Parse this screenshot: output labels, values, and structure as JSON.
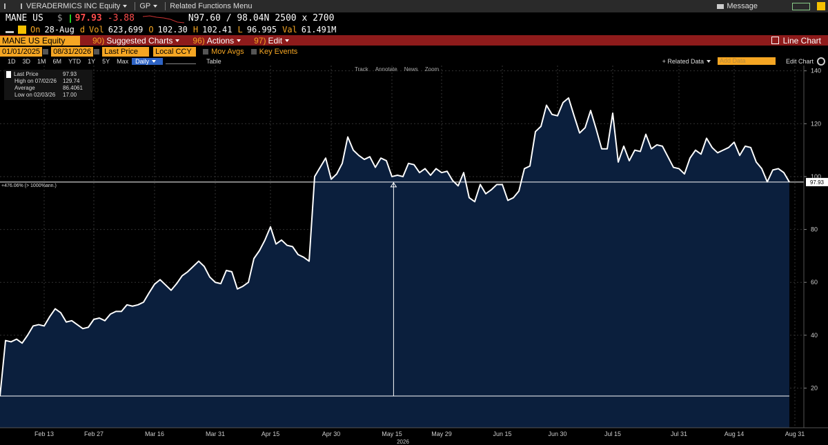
{
  "header": {
    "security": "VERADERMICS INC Equity",
    "function": "GP",
    "related": "Related Functions Menu",
    "message": "Message"
  },
  "quote": {
    "ticker": "MANE US",
    "currency": "$",
    "last": "97.93",
    "change": "-3.88",
    "bid_ask": "N97.60 / 98.04N",
    "size": "2500 x 2700"
  },
  "stats": [
    {
      "label": "On",
      "value": "28-Aug"
    },
    {
      "label": "d",
      "value": ""
    },
    {
      "label": "Vol",
      "value": "623,699"
    },
    {
      "label": "O",
      "value": "102.30"
    },
    {
      "label": "H",
      "value": "102.41"
    },
    {
      "label": "L",
      "value": "96.995"
    },
    {
      "label": "Val",
      "value": "61.491M"
    }
  ],
  "menu": {
    "security": "MANE US Equity",
    "items": [
      {
        "key": "90)",
        "label": "Suggested Charts"
      },
      {
        "key": "96)",
        "label": "Actions"
      },
      {
        "key": "97)",
        "label": "Edit"
      }
    ],
    "chart_name": "Line Chart"
  },
  "settings": {
    "start": "01/01/2025",
    "end": "08/31/2026",
    "field": "Last Price",
    "currency": "Local CCY",
    "options": [
      "Mov Avgs",
      "Key Events"
    ]
  },
  "periods": {
    "items": [
      "1D",
      "3D",
      "1M",
      "6M",
      "YTD",
      "1Y",
      "5Y",
      "Max"
    ],
    "frequency": "Daily",
    "table": "Table",
    "related_data": "+ Related Data",
    "add_data": "Add Data",
    "edit_chart": "Edit Chart"
  },
  "tools": [
    "Track",
    "Annotate",
    "News",
    "Zoom"
  ],
  "chart_data": {
    "type": "line",
    "legend_position": "top-left",
    "legend": [
      {
        "label": "Last Price",
        "value": "97.93"
      },
      {
        "label": "High on 07/02/26",
        "value": "129.74"
      },
      {
        "label": "Average",
        "value": "86.4061"
      },
      {
        "label": "Low on 02/03/26",
        "value": "17.00"
      }
    ],
    "return_label": "+476.06% (> 1000%ann.)",
    "year_label": "2026",
    "series": [
      {
        "name": "Last Price",
        "color": "#ffffff",
        "fill": "#0b1f3d",
        "values": [
          17,
          38,
          37.5,
          38.5,
          37,
          40,
          43.5,
          44,
          43.5,
          47,
          50,
          48.5,
          45,
          45.5,
          44,
          42.5,
          43,
          46,
          46.5,
          45.5,
          48,
          49,
          49,
          51.5,
          51,
          51.5,
          52.5,
          56,
          59.3,
          61,
          59,
          57,
          59.5,
          62.5,
          64,
          66,
          68,
          66,
          62,
          60,
          59.5,
          64.5,
          64,
          57.5,
          58.5,
          60,
          69,
          72,
          76,
          81,
          74.5,
          76,
          74,
          73.5,
          70.5,
          69.5,
          68,
          100,
          103.5,
          107,
          99,
          101,
          105,
          115,
          110,
          108,
          106.5,
          107.5,
          103.5,
          107,
          106,
          100,
          100.5,
          100,
          105,
          104.5,
          101.5,
          103,
          100.5,
          103,
          101.5,
          102,
          98.5,
          96.5,
          101.5,
          92,
          90.5,
          97,
          93.5,
          95,
          97,
          97,
          91,
          92,
          94.5,
          103,
          104,
          117,
          119,
          127,
          123.5,
          123,
          128,
          129.74,
          123,
          116.5,
          118.5,
          125,
          118,
          110.5,
          110.5,
          124,
          105.5,
          111.5,
          106,
          110,
          109.5,
          116,
          110.5,
          112,
          111.5,
          107.5,
          103.5,
          103,
          101,
          107,
          110,
          108.5,
          114.5,
          111,
          109,
          110,
          111,
          113,
          108,
          111.5,
          111,
          105.5,
          103,
          98,
          102.5,
          103,
          101.5,
          97.93
        ]
      }
    ],
    "xlim": [
      0,
      144
    ],
    "xticks": [
      {
        "value": 8,
        "label": "Feb 13"
      },
      {
        "value": 17,
        "label": "Feb 27"
      },
      {
        "value": 28,
        "label": "Mar 16"
      },
      {
        "value": 39,
        "label": "Mar 31"
      },
      {
        "value": 49,
        "label": "Apr 15"
      },
      {
        "value": 60,
        "label": "Apr 30"
      },
      {
        "value": 71,
        "label": "May 15"
      },
      {
        "value": 80,
        "label": "May 29"
      },
      {
        "value": 91,
        "label": "Jun 15"
      },
      {
        "value": 101,
        "label": "Jun 30"
      },
      {
        "value": 111,
        "label": "Jul 15"
      },
      {
        "value": 123,
        "label": "Jul 31"
      },
      {
        "value": 133,
        "label": "Aug 14"
      },
      {
        "value": 144,
        "label": "Aug 31"
      }
    ],
    "ylim": [
      5,
      142
    ],
    "yticks": [
      20,
      40,
      60,
      80,
      100,
      120,
      140
    ],
    "grid": true
  }
}
